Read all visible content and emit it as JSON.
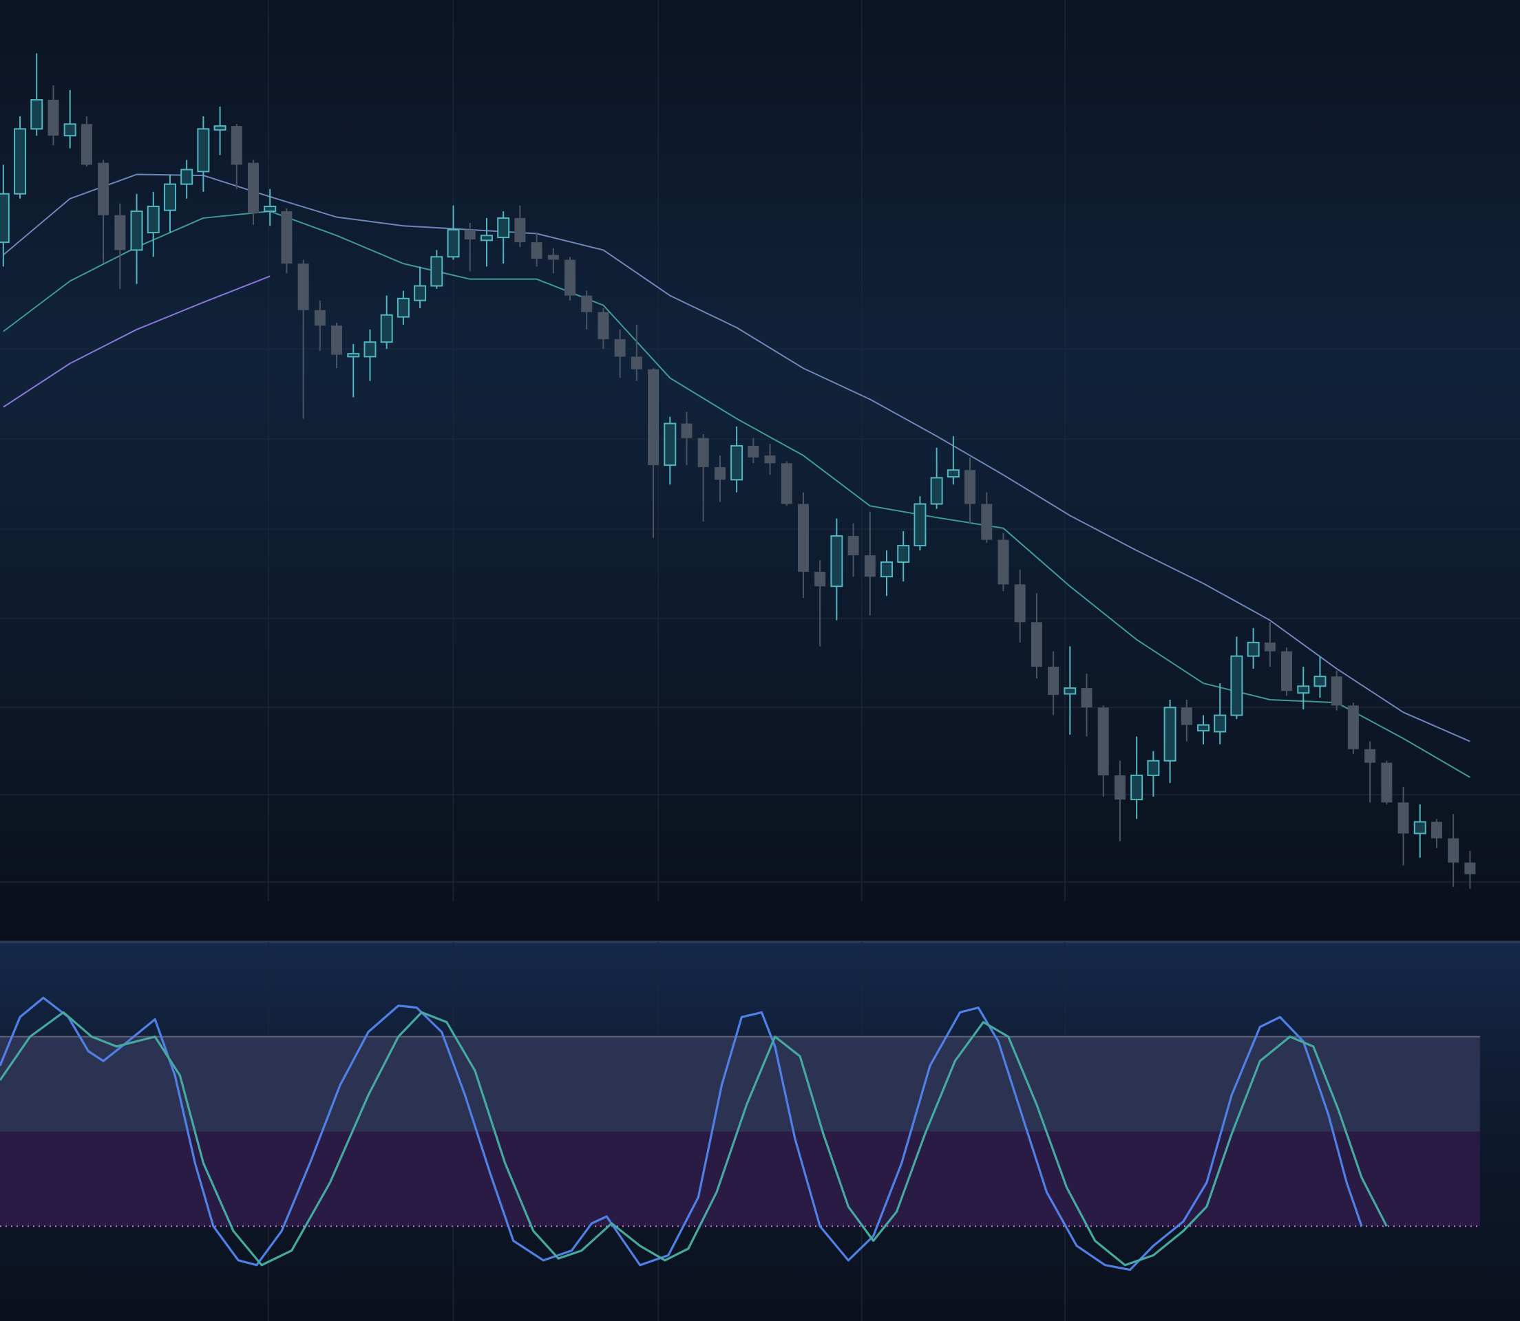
{
  "chart_data": [
    {
      "type": "candlestick",
      "xlim": [
        -0.2,
        91
      ],
      "ylim": [
        70,
        1000
      ],
      "xticks": [
        15.9,
        27.0,
        39.3,
        51.5,
        63.7
      ],
      "yticks": [
        90,
        180,
        270,
        362,
        454,
        547,
        640
      ],
      "grid": true,
      "bull_color": "#52b6c2",
      "bull_fill": "#17404f",
      "bear_color": "#4b5462",
      "open": [
        750,
        800,
        867,
        897,
        860,
        872,
        832,
        778,
        742,
        760,
        783,
        810,
        823,
        866,
        870,
        832,
        782,
        782,
        728,
        680,
        664,
        632,
        632,
        647,
        673,
        690,
        705,
        735,
        763,
        752,
        755,
        775,
        750,
        737,
        732,
        695,
        678,
        650,
        632,
        619,
        520,
        563,
        548,
        518,
        505,
        540,
        530,
        522,
        480,
        410,
        395,
        447,
        427,
        405,
        420,
        437,
        480,
        508,
        515,
        480,
        443,
        397,
        358,
        312,
        284,
        290,
        270,
        200,
        175,
        200,
        215,
        270,
        246,
        245,
        262,
        323,
        337,
        328,
        285,
        292,
        302,
        272,
        227,
        213,
        172,
        140,
        152,
        135,
        110
      ],
      "high": [
        830,
        880,
        945,
        912,
        907,
        880,
        835,
        790,
        800,
        802,
        820,
        835,
        880,
        890,
        872,
        835,
        805,
        785,
        732,
        690,
        667,
        645,
        660,
        695,
        700,
        725,
        742,
        788,
        770,
        775,
        782,
        788,
        760,
        744,
        735,
        700,
        682,
        660,
        665,
        620,
        570,
        575,
        552,
        530,
        560,
        548,
        542,
        524,
        492,
        422,
        465,
        460,
        472,
        432,
        452,
        488,
        538,
        550,
        528,
        492,
        450,
        412,
        388,
        328,
        333,
        305,
        272,
        215,
        240,
        225,
        278,
        278,
        262,
        295,
        343,
        352,
        358,
        332,
        312,
        323,
        308,
        275,
        235,
        215,
        188,
        170,
        155,
        160,
        122
      ],
      "low": [
        725,
        795,
        860,
        850,
        847,
        828,
        728,
        702,
        707,
        735,
        760,
        795,
        802,
        840,
        805,
        768,
        767,
        718,
        568,
        638,
        620,
        590,
        607,
        640,
        665,
        682,
        702,
        732,
        720,
        725,
        728,
        745,
        725,
        718,
        690,
        660,
        640,
        610,
        607,
        445,
        500,
        520,
        462,
        482,
        492,
        522,
        510,
        478,
        383,
        333,
        360,
        405,
        365,
        385,
        400,
        432,
        475,
        500,
        460,
        440,
        390,
        337,
        300,
        262,
        242,
        240,
        178,
        132,
        155,
        178,
        192,
        235,
        232,
        232,
        258,
        310,
        312,
        282,
        268,
        280,
        267,
        222,
        172,
        170,
        107,
        115,
        125,
        85,
        83
      ],
      "close": [
        800,
        867,
        897,
        860,
        872,
        830,
        778,
        742,
        782,
        787,
        810,
        825,
        867,
        870,
        830,
        780,
        787,
        728,
        680,
        664,
        634,
        635,
        647,
        675,
        692,
        705,
        735,
        763,
        753,
        757,
        775,
        750,
        733,
        732,
        695,
        678,
        650,
        632,
        619,
        520,
        563,
        548,
        518,
        505,
        540,
        528,
        522,
        480,
        410,
        395,
        447,
        427,
        405,
        420,
        437,
        480,
        507,
        515,
        480,
        443,
        397,
        358,
        312,
        283,
        290,
        270,
        200,
        175,
        200,
        215,
        270,
        252,
        252,
        262,
        323,
        337,
        328,
        287,
        292,
        302,
        272,
        227,
        213,
        172,
        140,
        152,
        135,
        110,
        98
      ],
      "series": [
        {
          "color": "#6f86b8",
          "x": [
            0,
            4,
            8,
            12,
            16,
            20,
            24,
            28,
            32,
            36,
            40,
            44,
            48,
            52,
            56,
            60,
            64,
            68,
            72,
            76,
            80,
            84,
            88
          ],
          "values": [
            737,
            795,
            820,
            819,
            797,
            776,
            767,
            763,
            759,
            742,
            695,
            662,
            620,
            588,
            550,
            510,
            468,
            432,
            398,
            360,
            310,
            265,
            235
          ]
        },
        {
          "color": "#3f9a98",
          "x": [
            0,
            4,
            8,
            12,
            16,
            20,
            24,
            28,
            32,
            36,
            40,
            44,
            48,
            52,
            56,
            60,
            64,
            68,
            72,
            76,
            80,
            84,
            88
          ],
          "values": [
            658,
            710,
            745,
            775,
            782,
            757,
            728,
            712,
            712,
            685,
            610,
            568,
            530,
            478,
            466,
            455,
            395,
            340,
            295,
            278,
            275,
            238,
            198
          ]
        },
        {
          "color": "#8a78d8",
          "x": [
            0,
            4,
            8,
            12,
            16,
            20
          ],
          "values": [
            580,
            625,
            660,
            688,
            715,
            null
          ]
        }
      ]
    },
    {
      "type": "oscillator",
      "xlim": [
        -0.2,
        91
      ],
      "ylim": [
        -10,
        110
      ],
      "xticks": [
        15.9,
        27.0,
        39.3,
        51.5,
        63.7
      ],
      "levels": [
        20,
        50,
        80
      ],
      "level_colors": [
        "#2a1b45",
        "#2c3251"
      ],
      "level_line_color": "#d472c8",
      "series": [
        {
          "color": "#4f80e6",
          "x": [
            -0.2,
            1.0,
            2.4,
            3.9,
            5.1,
            6.0,
            7.1,
            9.1,
            10.3,
            11.5,
            12.6,
            14.1,
            15.2,
            16.7,
            18.4,
            20.2,
            21.9,
            23.7,
            24.8,
            26.3,
            27.7,
            29.2,
            30.6,
            32.4,
            34.1,
            35.3,
            36.2,
            37.0,
            38.2,
            39.9,
            41.7,
            43.1,
            44.3,
            45.5,
            46.3,
            47.5,
            49.0,
            50.7,
            52.2,
            53.9,
            55.6,
            57.4,
            58.5,
            59.7,
            61.2,
            62.6,
            64.4,
            66.1,
            67.6,
            69.0,
            70.8,
            72.2,
            73.7,
            75.4,
            76.6,
            78.0,
            79.5,
            80.6,
            81.5
          ],
          "values": [
            70.8,
            86.2,
            92.3,
            86.2,
            75.4,
            72.3,
            76.9,
            85.5,
            67.7,
            40,
            20,
            9.2,
            7.7,
            18.5,
            40,
            64.6,
            81.5,
            89.8,
            89.2,
            81.5,
            61.5,
            36.9,
            15.4,
            9.2,
            12.3,
            20.9,
            23.1,
            16.9,
            7.7,
            10.8,
            29.2,
            64.6,
            86.2,
            87.7,
            76.9,
            47.7,
            20,
            9.2,
            16.9,
            40,
            70.8,
            87.7,
            89.2,
            78.5,
            53.8,
            30.8,
            13.8,
            7.7,
            6.2,
            13.8,
            21.5,
            33.8,
            61.5,
            83.1,
            86.2,
            78.5,
            55.4,
            33.8,
            20
          ]
        },
        {
          "color": "#45a9a0",
          "x": [
            -0.2,
            1.6,
            3.6,
            5.3,
            6.8,
            9.1,
            10.6,
            12.0,
            13.8,
            15.5,
            17.3,
            19.6,
            21.9,
            23.7,
            25.1,
            26.6,
            28.3,
            30.1,
            31.8,
            33.3,
            34.7,
            36.5,
            38.2,
            39.7,
            41.1,
            42.8,
            44.6,
            46.3,
            47.8,
            49.2,
            50.7,
            52.2,
            53.6,
            55.3,
            57.1,
            58.8,
            60.3,
            62.0,
            63.8,
            65.5,
            67.3,
            69.0,
            70.8,
            72.2,
            73.7,
            75.4,
            77.2,
            78.6,
            80.1,
            81.5,
            83.0
          ],
          "values": [
            66.2,
            80,
            87.7,
            80,
            76.9,
            80,
            67.7,
            40,
            18.5,
            7.7,
            12.3,
            33.8,
            61.5,
            80,
            87.7,
            84.6,
            69.2,
            40,
            18.5,
            9.8,
            12.3,
            20.9,
            13.8,
            9.2,
            12.9,
            30.8,
            58.5,
            80,
            73.8,
            49.2,
            26.2,
            15.4,
            24.6,
            49.2,
            72.3,
            84.6,
            80,
            58.5,
            32.3,
            15.4,
            7.7,
            10.8,
            18.5,
            26.2,
            49.2,
            72.3,
            80,
            76.9,
            56.9,
            35.4,
            20
          ]
        }
      ]
    }
  ]
}
